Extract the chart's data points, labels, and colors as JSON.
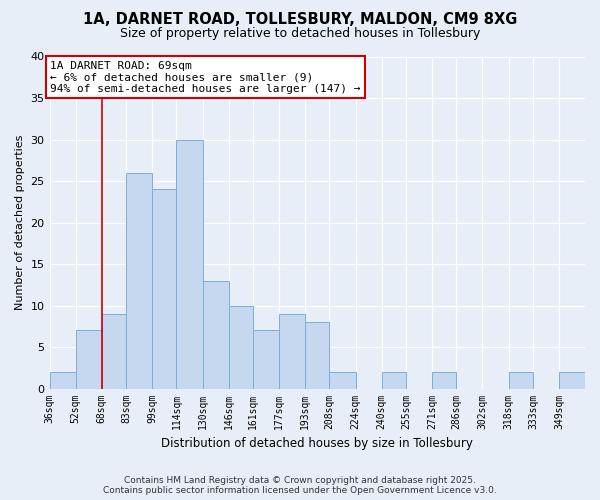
{
  "title": "1A, DARNET ROAD, TOLLESBURY, MALDON, CM9 8XG",
  "subtitle": "Size of property relative to detached houses in Tollesbury",
  "xlabel": "Distribution of detached houses by size in Tollesbury",
  "ylabel": "Number of detached properties",
  "bin_labels": [
    "36sqm",
    "52sqm",
    "68sqm",
    "83sqm",
    "99sqm",
    "114sqm",
    "130sqm",
    "146sqm",
    "161sqm",
    "177sqm",
    "193sqm",
    "208sqm",
    "224sqm",
    "240sqm",
    "255sqm",
    "271sqm",
    "286sqm",
    "302sqm",
    "318sqm",
    "333sqm",
    "349sqm"
  ],
  "bin_edges": [
    36,
    52,
    68,
    83,
    99,
    114,
    130,
    146,
    161,
    177,
    193,
    208,
    224,
    240,
    255,
    271,
    286,
    302,
    318,
    333,
    349,
    365
  ],
  "bar_values": [
    2,
    7,
    9,
    26,
    24,
    30,
    13,
    10,
    7,
    9,
    8,
    2,
    0,
    2,
    0,
    2,
    0,
    0,
    2,
    0,
    2
  ],
  "bar_color": "#c5d8f0",
  "bar_edge_color": "#7bafd4",
  "property_line_x": 68,
  "property_line_color": "#cc0000",
  "annotation_title": "1A DARNET ROAD: 69sqm",
  "annotation_line1": "← 6% of detached houses are smaller (9)",
  "annotation_line2": "94% of semi-detached houses are larger (147) →",
  "annotation_box_color": "#ffffff",
  "annotation_box_edge_color": "#cc0000",
  "ylim": [
    0,
    40
  ],
  "yticks": [
    0,
    5,
    10,
    15,
    20,
    25,
    30,
    35,
    40
  ],
  "background_color": "#e8eef7",
  "footer_line1": "Contains HM Land Registry data © Crown copyright and database right 2025.",
  "footer_line2": "Contains public sector information licensed under the Open Government Licence v3.0."
}
